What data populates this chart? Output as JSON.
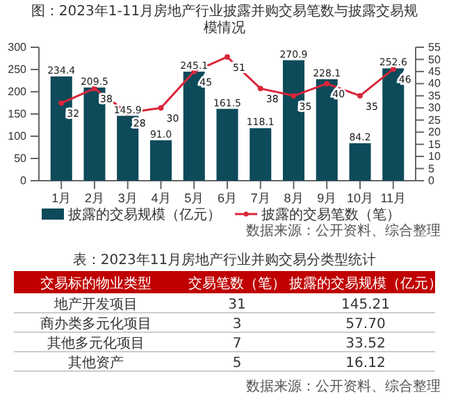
{
  "chart_data": [
    {
      "type": "bar",
      "title": "图：2023年1-11月房地产行业披露并购交易笔数与披露交易规模情况",
      "categories": [
        "1月",
        "2月",
        "3月",
        "4月",
        "5月",
        "6月",
        "7月",
        "8月",
        "9月",
        "10月",
        "11月"
      ],
      "series": [
        {
          "name": "披露的交易规模（亿元）",
          "type": "bar",
          "color": "#0d4a5a",
          "values": [
            234.4,
            209.5,
            145.9,
            91.0,
            245.1,
            161.5,
            118.1,
            270.9,
            228.1,
            84.2,
            252.6
          ],
          "value_labels": [
            "234.4",
            "209.5",
            "145.9",
            "91.0",
            "245.1",
            "161.5",
            "118.1",
            "270.9",
            "228.1",
            "84.2",
            "252.6"
          ]
        },
        {
          "name": "披露的交易笔数（笔）",
          "type": "line",
          "axis": "y2",
          "color": "#d9263a",
          "marker": "circle",
          "values": [
            32,
            38,
            28,
            30,
            45,
            51,
            38,
            35,
            40,
            35,
            46
          ]
        }
      ],
      "data_labels": true,
      "ylim": [
        0,
        300
      ],
      "yticks": [
        0,
        50,
        100,
        150,
        200,
        250,
        300
      ],
      "y2lim": [
        0,
        55
      ],
      "y2ticks": [
        0,
        5,
        10,
        15,
        20,
        25,
        30,
        35,
        40,
        45,
        50,
        55
      ],
      "grid": false,
      "legend": "bottom",
      "annotations": [
        "数据来源：公开资料、综合整理"
      ]
    },
    {
      "type": "other",
      "title": "表：2023年11月房地产行业并购交易分类型统计",
      "xlabel": "交易标的物业类型",
      "categories": [
        "地产开发项目",
        "商办类多元化项目",
        "其他多元化项目",
        "其他资产"
      ],
      "series": [
        {
          "name": "交易笔数（笔）",
          "values": [
            31,
            3,
            7,
            5
          ],
          "value_labels": [
            "31",
            "3",
            "7",
            "5"
          ]
        },
        {
          "name": "披露的交易规模（亿元）",
          "values": [
            145.21,
            57.7,
            33.52,
            16.12
          ],
          "value_labels": [
            "145.21",
            "57.70",
            "33.52",
            "16.12"
          ]
        }
      ],
      "annotations": [
        "数据来源：公开资料、综合整理"
      ]
    }
  ]
}
